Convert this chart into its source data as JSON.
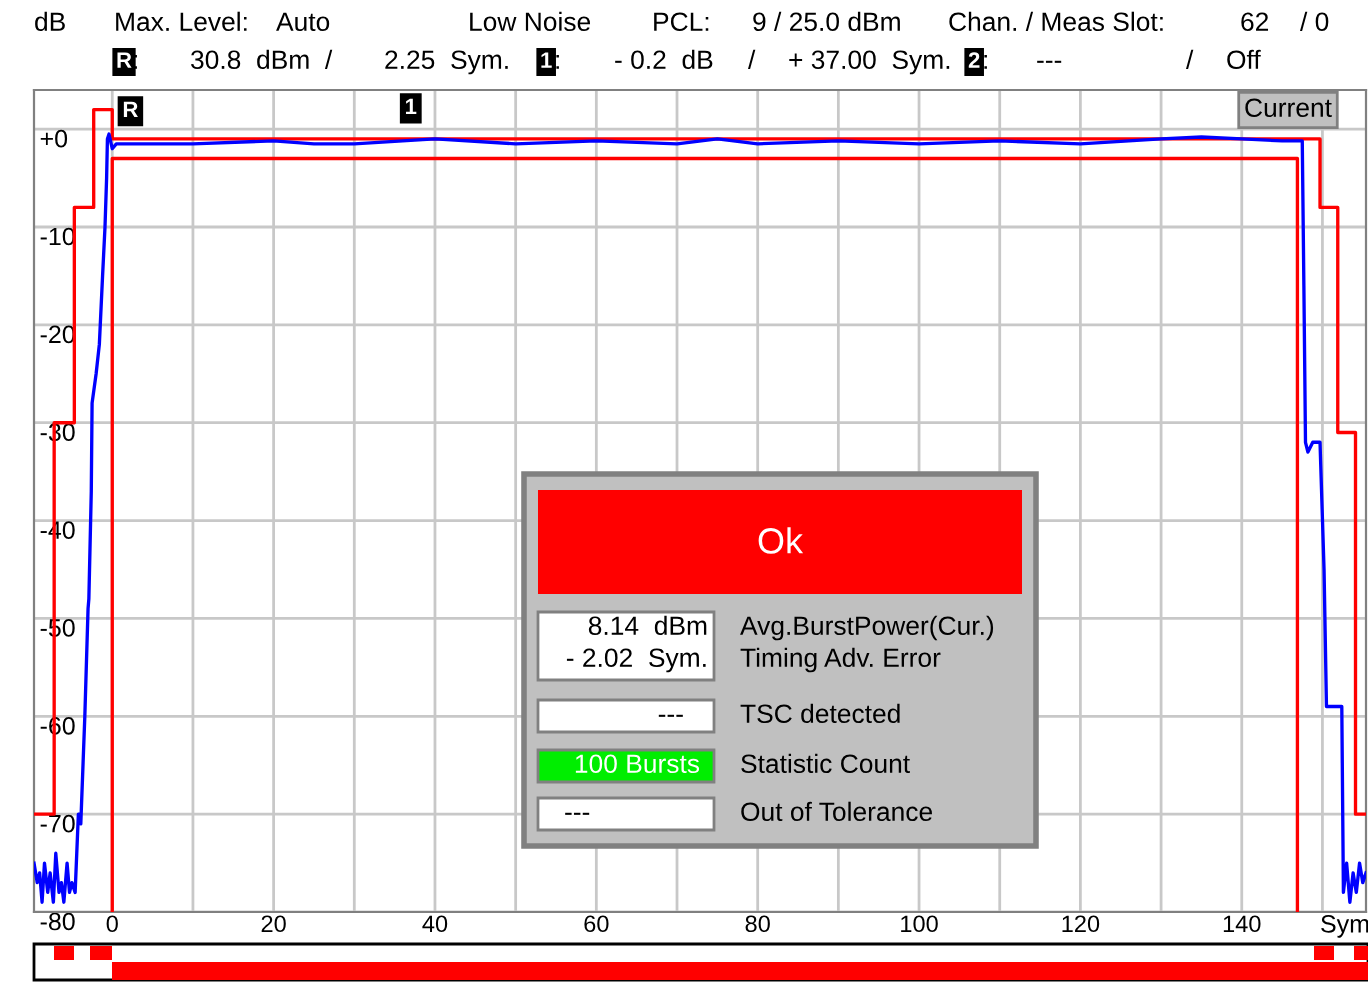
{
  "chart_data": {
    "type": "line",
    "xlim": [
      -9.7,
      155.4
    ],
    "ylim": [
      -80,
      4
    ],
    "xticks": [
      0,
      {
        "value": 10,
        "label": null
      },
      20,
      {
        "value": 30,
        "label": null
      },
      40,
      {
        "value": 50,
        "label": null
      },
      60,
      {
        "value": 70,
        "label": null
      },
      80,
      {
        "value": 90,
        "label": null
      },
      100,
      {
        "value": 110,
        "label": null
      },
      120,
      {
        "value": 130,
        "label": null
      },
      140,
      {
        "value": 150,
        "label": null
      }
    ],
    "yticks": [
      {
        "value": 0,
        "label": "+0"
      },
      -10,
      -20,
      -30,
      -40,
      -50,
      -60,
      -70,
      -80
    ],
    "grid": true,
    "legend": false,
    "series": [
      {
        "color": "#ff0000",
        "x": [
          -9.7,
          -7.2,
          -7.2,
          -4.7,
          -4.7,
          -2.3,
          -2.3,
          0,
          0,
          149.7,
          149.7,
          151.9,
          151.9,
          154.1,
          154.1,
          155.4
        ],
        "values": [
          -70,
          -70,
          -30,
          -30,
          -8,
          -8,
          2,
          2,
          -1,
          -1,
          -8,
          -8,
          -31,
          -31,
          -70,
          -70
        ]
      },
      {
        "color": "#ff0000",
        "x": [
          0,
          0,
          146.9,
          146.9
        ],
        "values": [
          -80,
          -3,
          -3,
          -80
        ]
      },
      {
        "color": "#0000ff",
        "x": [
          -9.7,
          -9.3,
          -9,
          -8.7,
          -8.4,
          -8,
          -7.7,
          -7.3,
          -7,
          -6.6,
          -6.3,
          -6,
          -5.6,
          -5.3,
          -5,
          -4.6,
          -4.2,
          -4,
          -3.9,
          -3.4,
          -3,
          -2.9,
          -2.6,
          -2.5,
          -2,
          -1.6,
          -1.2,
          -0.9,
          -0.7,
          -0.6,
          -0.4,
          0,
          0.5,
          5,
          10,
          20,
          25,
          30,
          40,
          50,
          60,
          70,
          75,
          80,
          90,
          100,
          110,
          120,
          130,
          135,
          140,
          145,
          147.5,
          147.7,
          147.9,
          148.2,
          148.8,
          149.7,
          150.2,
          150.5,
          150.7,
          151.2,
          152.4,
          152.6,
          153,
          153.4,
          153.8,
          154.2,
          154.6,
          155,
          155.4
        ],
        "values": [
          -75,
          -77,
          -76,
          -79,
          -75,
          -78,
          -76,
          -79,
          -74,
          -78,
          -77,
          -79,
          -75,
          -78,
          -77,
          -78,
          -70,
          -70,
          -71,
          -60,
          -49,
          -48,
          -37,
          -28,
          -25,
          -22,
          -15,
          -10,
          -5,
          -1,
          -0.5,
          -2,
          -1.5,
          -1.5,
          -1.5,
          -1.2,
          -1.5,
          -1.5,
          -1,
          -1.5,
          -1.2,
          -1.5,
          -1,
          -1.5,
          -1.2,
          -1.5,
          -1.2,
          -1.5,
          -1,
          -0.8,
          -1,
          -1.2,
          -1.2,
          -16,
          -32,
          -33,
          -32,
          -32,
          -45,
          -59,
          -59,
          -59,
          -59,
          -78,
          -75,
          -79,
          -76,
          -78,
          -75,
          -77,
          -76
        ]
      }
    ],
    "annotations": [
      {
        "text": "R",
        "x": 2.25,
        "y": -1.5
      },
      {
        "text": "1",
        "x": 37,
        "y": -1.2
      },
      "dB",
      "Max. Level:",
      "Auto",
      "Low Noise",
      "PCL:",
      "9 / 25.0 dBm",
      "Chan. / Meas Slot:",
      "62",
      "/ 0",
      "R",
      ":",
      "30.8  dBm  /",
      "2.25  Sym.",
      "1",
      ":",
      "- 0.2  dB",
      "/",
      "+ 37.00  Sym.",
      "2",
      ":",
      "---",
      "/",
      "Off",
      "Current",
      "Sym",
      "Ok",
      "8.14  dBm",
      "- 2.02  Sym.",
      "Avg.BurstPower(Cur.)",
      "Timing Adv. Error",
      "---",
      "TSC detected",
      "100 Bursts",
      "Statistic Count",
      "---",
      "Out of Tolerance"
    ]
  }
}
